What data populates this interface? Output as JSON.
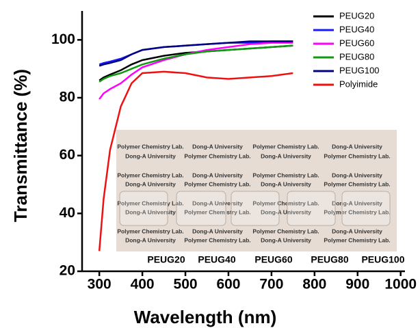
{
  "chart_data": {
    "type": "line",
    "xlabel": "Wavelength (nm)",
    "ylabel": "Transmittance (%)",
    "x": [
      300,
      310,
      325,
      350,
      375,
      400,
      450,
      500,
      550,
      600,
      650,
      700,
      750
    ],
    "series": [
      {
        "name": "PEUG20",
        "color": "#000000",
        "values": [
          86,
          87,
          88,
          89.5,
          91.5,
          93,
          94.5,
          95.5,
          96,
          96.5,
          97,
          97.5,
          98
        ]
      },
      {
        "name": "PEUG40",
        "color": "#1a1aff",
        "values": [
          91.5,
          92,
          92.5,
          93.5,
          95,
          96.5,
          97.5,
          98,
          98.5,
          99,
          99,
          99.5,
          99.5
        ]
      },
      {
        "name": "PEUG60",
        "color": "#ff00ff",
        "values": [
          79.5,
          81.5,
          83,
          85,
          88,
          90.5,
          93,
          95,
          96.5,
          97.5,
          98.5,
          99,
          99
        ]
      },
      {
        "name": "PEUG80",
        "color": "#119911",
        "values": [
          85.5,
          86.5,
          87.5,
          88.5,
          90,
          91.5,
          93.5,
          95,
          96,
          96.5,
          97,
          97.5,
          98
        ]
      },
      {
        "name": "PEUG100",
        "color": "#000080",
        "values": [
          91,
          91.5,
          92,
          93,
          95,
          96.5,
          97.5,
          98,
          98.5,
          99,
          99.5,
          99.5,
          99.5
        ]
      },
      {
        "name": "Polyimide",
        "color": "#ee1111",
        "values": [
          27,
          45,
          62,
          77,
          85,
          88.5,
          89,
          88.5,
          87,
          86.5,
          87,
          87.5,
          88.5
        ]
      }
    ],
    "xlim": [
      260,
      1010
    ],
    "ylim": [
      20,
      110
    ],
    "xticks": [
      300,
      400,
      500,
      600,
      700,
      800,
      900,
      1000
    ],
    "yticks": [
      20,
      40,
      60,
      80,
      100
    ],
    "legend": "top-right",
    "inset_text": [
      "Polymer Chemistry Lab.",
      "Dong-A University"
    ],
    "inset_labels": [
      "PEUG20",
      "PEUG40",
      "PEUG60",
      "PEUG80",
      "PEUG100"
    ]
  }
}
